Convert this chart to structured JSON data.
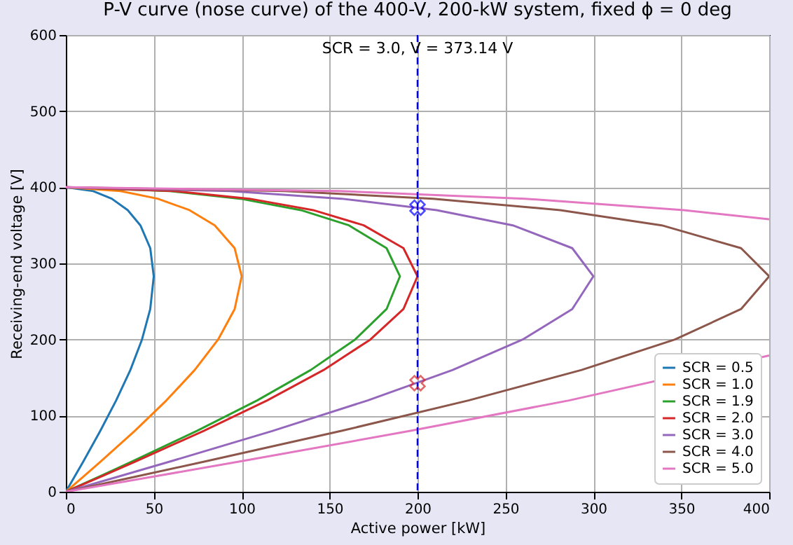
{
  "chart_data": {
    "type": "line",
    "title": "P-V curve (nose curve) of the 400-V, 200-kW system, fixed ϕ = 0 deg",
    "xlabel": "Active power [kW]",
    "ylabel": "Receiving-end voltage [V]",
    "annotations": [
      "SCR = 3.0, V = 373.14 V"
    ],
    "xlim": [
      0,
      400
    ],
    "ylim": [
      0,
      600
    ],
    "xticks": [
      0,
      50,
      100,
      150,
      200,
      250,
      300,
      350,
      400
    ],
    "yticks": [
      0,
      100,
      200,
      300,
      400,
      500,
      600
    ],
    "grid": true,
    "legend": "bottom right",
    "series": [
      {
        "name": "SCR = 0.5",
        "color": "#1f77b4",
        "x": [
          0,
          5,
          10,
          19.6,
          28.6,
          36.7,
          43.3,
          48,
          50,
          48,
          42.4,
          35.2,
          26.1,
          15.6,
          0
        ],
        "values": [
          0,
          20,
          40,
          80,
          120,
          160,
          200,
          240,
          283,
          320,
          350,
          370,
          385,
          395,
          400
        ]
      },
      {
        "name": "SCR = 1.0",
        "color": "#ff7f0e",
        "x": [
          0,
          10,
          19.9,
          39.2,
          57.2,
          73.3,
          86.6,
          96,
          100,
          96,
          84.7,
          70.3,
          52.2,
          31.1,
          0
        ],
        "values": [
          0,
          20,
          40,
          80,
          120,
          160,
          200,
          240,
          283,
          320,
          350,
          370,
          385,
          395,
          400
        ]
      },
      {
        "name": "SCR = 1.9",
        "color": "#2ca02c",
        "x": [
          0,
          19,
          37.8,
          74.5,
          108.8,
          139.3,
          164.5,
          182.4,
          190,
          182.4,
          161,
          133.6,
          99.2,
          59.1,
          0
        ],
        "values": [
          0,
          20,
          40,
          80,
          120,
          160,
          200,
          240,
          283,
          320,
          350,
          370,
          385,
          395,
          400
        ]
      },
      {
        "name": "SCR = 2.0",
        "color": "#d62728",
        "x": [
          0,
          20,
          39.8,
          78.4,
          114.5,
          146.6,
          173.2,
          192,
          200,
          192,
          169.4,
          140.6,
          104.4,
          62.2,
          0
        ],
        "values": [
          0,
          20,
          40,
          80,
          120,
          160,
          200,
          240,
          283,
          320,
          350,
          370,
          385,
          395,
          400
        ]
      },
      {
        "name": "SCR = 3.0",
        "color": "#9467bd",
        "x": [
          0,
          30,
          59.7,
          117.6,
          171.7,
          220,
          259.8,
          288,
          300,
          288,
          254.2,
          210.9,
          156.7,
          93.4,
          0
        ],
        "values": [
          0,
          20,
          40,
          80,
          120,
          160,
          200,
          240,
          283,
          320,
          350,
          370,
          385,
          395,
          400
        ]
      },
      {
        "name": "SCR = 4.0",
        "color": "#8c564b",
        "x": [
          0,
          40,
          79.6,
          156.8,
          229,
          293.3,
          346.4,
          384,
          400,
          384,
          338.9,
          281.2,
          208.9,
          124.5,
          0
        ],
        "values": [
          0,
          20,
          40,
          80,
          120,
          160,
          200,
          240,
          283,
          320,
          350,
          370,
          385,
          395,
          400
        ]
      },
      {
        "name": "SCR = 5.0",
        "color": "#e377c2",
        "x": [
          0,
          50,
          99.5,
          196,
          286.2,
          400,
          null,
          400,
          351.5,
          261.1,
          155.6,
          0
        ],
        "values": [
          0,
          20,
          40,
          80,
          120,
          179,
          null,
          358,
          370,
          385,
          395,
          400
        ]
      },
      {
        "type": "scatter",
        "marker": "cross",
        "x": [
          200,
          200
        ],
        "values": [
          373.14,
          142.7
        ],
        "colors": [
          "#0000ff",
          "#d62728"
        ]
      }
    ],
    "ref_lines": [
      {
        "axis": "x",
        "value": 200,
        "color": "#0000ff",
        "line_style": "dashed"
      }
    ]
  }
}
